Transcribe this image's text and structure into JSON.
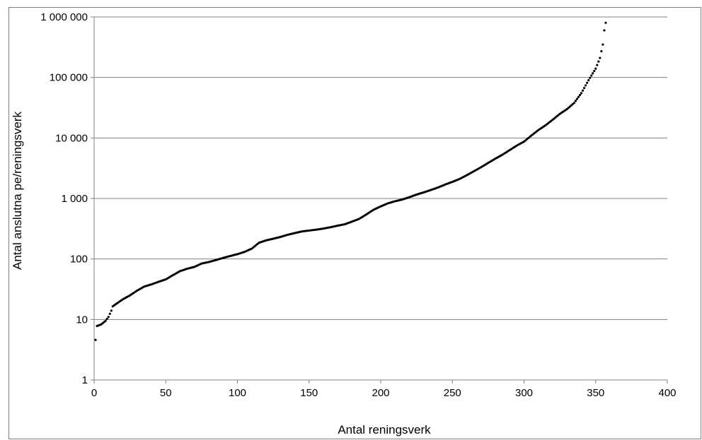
{
  "chart_data": {
    "type": "scatter",
    "xlabel": "Antal reningsverk",
    "ylabel": "Antal anslutna pe/reningsverk",
    "xlim": [
      0,
      400
    ],
    "ylim": [
      1,
      1000000
    ],
    "y_scale": "log",
    "x_ticks": [
      0,
      50,
      100,
      150,
      200,
      250,
      300,
      350,
      400
    ],
    "x_tick_labels": [
      "0",
      "50",
      "100",
      "150",
      "200",
      "250",
      "300",
      "350",
      "400"
    ],
    "y_ticks": [
      1,
      10,
      100,
      1000,
      10000,
      100000,
      1000000
    ],
    "y_tick_labels": [
      "1",
      "10",
      "100",
      "1 000",
      "10 000",
      "100 000",
      "1 000 000"
    ],
    "grid": "horizontal",
    "legend": "none",
    "marker_color": "#000000",
    "grid_color": "#808080",
    "curve": [
      [
        1,
        4.6
      ],
      [
        2,
        7.8
      ],
      [
        5,
        8.3
      ],
      [
        8,
        9.5
      ],
      [
        10,
        11
      ],
      [
        12,
        14
      ],
      [
        13,
        16.5
      ],
      [
        16,
        18.5
      ],
      [
        20,
        21.5
      ],
      [
        25,
        25
      ],
      [
        30,
        30
      ],
      [
        35,
        35
      ],
      [
        40,
        38
      ],
      [
        45,
        42
      ],
      [
        50,
        46
      ],
      [
        55,
        54
      ],
      [
        60,
        63
      ],
      [
        65,
        69
      ],
      [
        70,
        74
      ],
      [
        75,
        84
      ],
      [
        80,
        89
      ],
      [
        85,
        96
      ],
      [
        90,
        104
      ],
      [
        95,
        112
      ],
      [
        100,
        120
      ],
      [
        105,
        131
      ],
      [
        110,
        148
      ],
      [
        115,
        185
      ],
      [
        120,
        203
      ],
      [
        125,
        216
      ],
      [
        130,
        231
      ],
      [
        135,
        251
      ],
      [
        140,
        268
      ],
      [
        145,
        285
      ],
      [
        150,
        295
      ],
      [
        155,
        305
      ],
      [
        160,
        318
      ],
      [
        165,
        335
      ],
      [
        170,
        355
      ],
      [
        175,
        375
      ],
      [
        180,
        415
      ],
      [
        185,
        460
      ],
      [
        190,
        545
      ],
      [
        195,
        650
      ],
      [
        200,
        740
      ],
      [
        205,
        830
      ],
      [
        210,
        900
      ],
      [
        215,
        960
      ],
      [
        220,
        1050
      ],
      [
        225,
        1160
      ],
      [
        230,
        1260
      ],
      [
        235,
        1380
      ],
      [
        240,
        1520
      ],
      [
        245,
        1700
      ],
      [
        250,
        1880
      ],
      [
        255,
        2100
      ],
      [
        260,
        2420
      ],
      [
        265,
        2820
      ],
      [
        270,
        3280
      ],
      [
        275,
        3870
      ],
      [
        280,
        4550
      ],
      [
        285,
        5300
      ],
      [
        290,
        6300
      ],
      [
        295,
        7500
      ],
      [
        300,
        8700
      ],
      [
        305,
        10900
      ],
      [
        310,
        13500
      ],
      [
        315,
        16200
      ],
      [
        320,
        20000
      ],
      [
        325,
        25000
      ],
      [
        330,
        30000
      ],
      [
        335,
        38000
      ],
      [
        340,
        55000
      ],
      [
        345,
        90000
      ],
      [
        350,
        140000
      ],
      [
        353,
        210000
      ],
      [
        355,
        350000
      ],
      [
        356,
        600000
      ],
      [
        357,
        800000
      ]
    ]
  }
}
